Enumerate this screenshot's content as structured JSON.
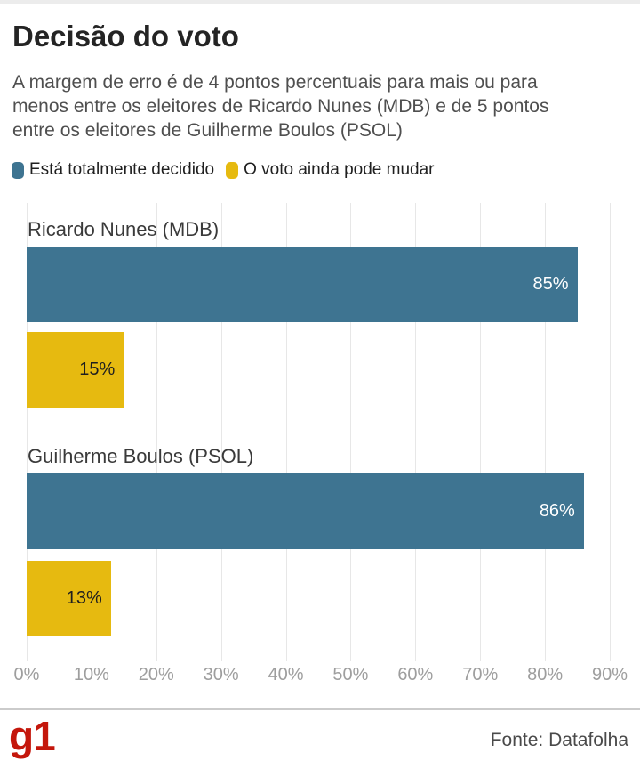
{
  "header": {
    "title": "Decisão do voto",
    "subtitle_lines": [
      "A margem de erro é de 4 pontos percentuais para mais ou para",
      "menos entre os eleitores de Ricardo Nunes (MDB) e de 5 pontos",
      "entre os eleitores de Guilherme Boulos (PSOL)"
    ]
  },
  "chart_data": {
    "type": "bar",
    "orientation": "horizontal",
    "title": "Decisão do voto",
    "subtitle": "A margem de erro é de 4 pontos percentuais para mais ou para menos entre os eleitores de Ricardo Nunes (MDB) e de 5 pontos entre os eleitores de Guilherme Boulos (PSOL)",
    "categories": [
      "Ricardo Nunes (MDB)",
      "Guilherme Boulos (PSOL)"
    ],
    "series": [
      {
        "name": "Está totalmente decidido",
        "color": "#3e7491",
        "label_color": "#ffffff",
        "values": [
          85,
          86
        ]
      },
      {
        "name": "O voto ainda pode mudar",
        "color": "#e6ba10",
        "label_color": "#1f1f1f",
        "values": [
          15,
          13
        ]
      }
    ],
    "value_suffix": "%",
    "xlim": [
      0,
      90
    ],
    "x_ticks": [
      "0%",
      "10%",
      "20%",
      "30%",
      "40%",
      "50%",
      "60%",
      "70%",
      "80%",
      "90%"
    ],
    "grid": true,
    "legend_position": "top-left"
  },
  "footer": {
    "logo": "g1",
    "logo_color": "#c4170c",
    "source": "Fonte: Datafolha"
  }
}
